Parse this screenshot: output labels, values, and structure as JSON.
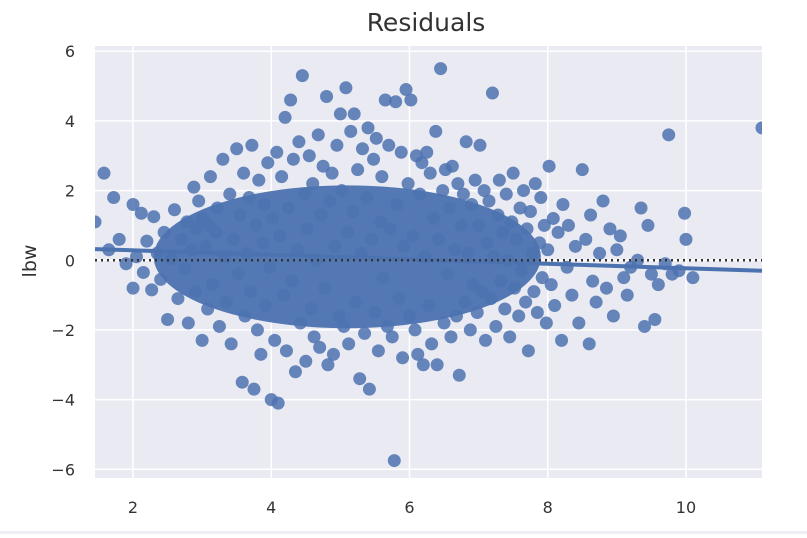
{
  "chart_data": {
    "type": "scatter",
    "title": "Residuals",
    "xlabel": "",
    "ylabel": "lbw",
    "xlim": [
      1.45,
      11.1
    ],
    "ylim": [
      -6.25,
      6.15
    ],
    "xticks": [
      2,
      4,
      6,
      8,
      10
    ],
    "yticks": [
      -6,
      -4,
      -2,
      0,
      2,
      4,
      6
    ],
    "grid": true,
    "colors": {
      "background": "#EAEAF2",
      "grid": "#FFFFFF",
      "points": "#4C72B0",
      "fit_line": "#4C72B0",
      "zero_line": "#333333"
    },
    "zero_line": {
      "y": 0,
      "style": "dotted"
    },
    "fit_line": {
      "x": [
        1.45,
        11.1
      ],
      "y": [
        0.32,
        -0.3
      ]
    },
    "series": [
      {
        "points": [
          [
            1.45,
            1.1
          ],
          [
            1.58,
            2.5
          ],
          [
            1.65,
            0.3
          ],
          [
            1.72,
            1.8
          ],
          [
            1.8,
            0.6
          ],
          [
            1.9,
            -0.1
          ],
          [
            2.0,
            1.6
          ],
          [
            2.0,
            -0.8
          ],
          [
            2.05,
            0.1
          ],
          [
            2.12,
            1.35
          ],
          [
            2.15,
            -0.35
          ],
          [
            2.2,
            0.55
          ],
          [
            2.27,
            -0.85
          ],
          [
            2.3,
            1.25
          ],
          [
            2.35,
            0.2
          ],
          [
            2.4,
            -0.55
          ],
          [
            2.45,
            0.8
          ],
          [
            2.5,
            -1.7
          ],
          [
            2.55,
            0.05
          ],
          [
            2.6,
            1.45
          ],
          [
            2.65,
            -1.1
          ],
          [
            2.7,
            0.6
          ],
          [
            2.75,
            -0.25
          ],
          [
            2.78,
            1.1
          ],
          [
            2.8,
            -1.8
          ],
          [
            2.85,
            0.3
          ],
          [
            2.88,
            2.1
          ],
          [
            2.9,
            -0.9
          ],
          [
            2.92,
            0.9
          ],
          [
            2.95,
            1.7
          ],
          [
            3.0,
            1.2
          ],
          [
            3.0,
            -2.3
          ],
          [
            3.05,
            0.4
          ],
          [
            3.08,
            -1.4
          ],
          [
            3.1,
            1.0
          ],
          [
            3.12,
            2.4
          ],
          [
            3.15,
            -0.7
          ],
          [
            3.2,
            0.8
          ],
          [
            3.22,
            1.5
          ],
          [
            3.25,
            -1.9
          ],
          [
            3.3,
            2.9
          ],
          [
            3.32,
            0.1
          ],
          [
            3.35,
            -1.2
          ],
          [
            3.4,
            1.9
          ],
          [
            3.42,
            -2.4
          ],
          [
            3.45,
            0.6
          ],
          [
            3.5,
            3.2
          ],
          [
            3.52,
            -0.4
          ],
          [
            3.55,
            1.3
          ],
          [
            3.58,
            -3.5
          ],
          [
            3.6,
            2.5
          ],
          [
            3.62,
            -1.6
          ],
          [
            3.65,
            0.2
          ],
          [
            3.68,
            1.8
          ],
          [
            3.7,
            -0.9
          ],
          [
            3.72,
            3.3
          ],
          [
            3.75,
            -3.7
          ],
          [
            3.78,
            1.0
          ],
          [
            3.8,
            -2.0
          ],
          [
            3.82,
            2.3
          ],
          [
            3.85,
            -2.7
          ],
          [
            3.88,
            0.5
          ],
          [
            3.9,
            1.6
          ],
          [
            3.92,
            -1.3
          ],
          [
            3.95,
            2.8
          ],
          [
            3.98,
            -0.2
          ],
          [
            4.0,
            -4.0
          ],
          [
            4.02,
            1.2
          ],
          [
            4.05,
            -2.3
          ],
          [
            4.08,
            3.1
          ],
          [
            4.1,
            -4.1
          ],
          [
            4.12,
            0.7
          ],
          [
            4.15,
            2.4
          ],
          [
            4.18,
            -1.0
          ],
          [
            4.2,
            4.1
          ],
          [
            4.22,
            -2.6
          ],
          [
            4.25,
            1.5
          ],
          [
            4.28,
            4.6
          ],
          [
            4.3,
            -0.6
          ],
          [
            4.32,
            2.9
          ],
          [
            4.35,
            -3.2
          ],
          [
            4.38,
            0.3
          ],
          [
            4.4,
            3.4
          ],
          [
            4.42,
            -1.8
          ],
          [
            4.45,
            5.3
          ],
          [
            4.48,
            1.9
          ],
          [
            4.5,
            -2.9
          ],
          [
            4.52,
            0.9
          ],
          [
            4.55,
            3.0
          ],
          [
            4.58,
            -1.4
          ],
          [
            4.6,
            2.2
          ],
          [
            4.62,
            -2.2
          ],
          [
            4.65,
            0.0
          ],
          [
            4.68,
            3.6
          ],
          [
            4.7,
            -2.5
          ],
          [
            4.72,
            1.3
          ],
          [
            4.75,
            2.7
          ],
          [
            4.78,
            -0.8
          ],
          [
            4.8,
            4.7
          ],
          [
            4.82,
            -3.0
          ],
          [
            4.85,
            1.7
          ],
          [
            4.88,
            2.5
          ],
          [
            4.9,
            -2.7
          ],
          [
            4.92,
            0.4
          ],
          [
            4.95,
            3.3
          ],
          [
            4.98,
            -1.6
          ],
          [
            5.0,
            4.2
          ],
          [
            5.02,
            2.0
          ],
          [
            5.05,
            -1.9
          ],
          [
            5.08,
            4.95
          ],
          [
            5.1,
            0.8
          ],
          [
            5.12,
            -2.4
          ],
          [
            5.15,
            3.7
          ],
          [
            5.18,
            1.4
          ],
          [
            5.2,
            4.2
          ],
          [
            5.22,
            -1.2
          ],
          [
            5.25,
            2.6
          ],
          [
            5.28,
            -3.4
          ],
          [
            5.3,
            0.2
          ],
          [
            5.32,
            3.2
          ],
          [
            5.35,
            -2.1
          ],
          [
            5.38,
            1.8
          ],
          [
            5.4,
            3.8
          ],
          [
            5.42,
            -3.7
          ],
          [
            5.45,
            0.6
          ],
          [
            5.48,
            2.9
          ],
          [
            5.5,
            -1.5
          ],
          [
            5.52,
            3.5
          ],
          [
            5.55,
            -2.6
          ],
          [
            5.58,
            1.1
          ],
          [
            5.6,
            2.4
          ],
          [
            5.62,
            -0.5
          ],
          [
            5.65,
            4.6
          ],
          [
            5.68,
            -1.9
          ],
          [
            5.7,
            3.3
          ],
          [
            5.72,
            0.9
          ],
          [
            5.75,
            -2.2
          ],
          [
            5.78,
            -5.75
          ],
          [
            5.8,
            4.55
          ],
          [
            5.82,
            1.6
          ],
          [
            5.85,
            -1.1
          ],
          [
            5.88,
            3.1
          ],
          [
            5.9,
            -2.8
          ],
          [
            5.92,
            0.4
          ],
          [
            5.95,
            4.9
          ],
          [
            5.98,
            2.2
          ],
          [
            6.0,
            -1.6
          ],
          [
            6.02,
            4.6
          ],
          [
            6.05,
            0.7
          ],
          [
            6.08,
            -2.0
          ],
          [
            6.1,
            3.0
          ],
          [
            6.12,
            -2.7
          ],
          [
            6.15,
            1.9
          ],
          [
            6.18,
            2.8
          ],
          [
            6.2,
            -3.0
          ],
          [
            6.22,
            0.1
          ],
          [
            6.25,
            3.1
          ],
          [
            6.28,
            -1.3
          ],
          [
            6.3,
            2.5
          ],
          [
            6.32,
            -2.4
          ],
          [
            6.35,
            1.2
          ],
          [
            6.38,
            3.7
          ],
          [
            6.4,
            -3.0
          ],
          [
            6.42,
            0.6
          ],
          [
            6.45,
            5.5
          ],
          [
            6.48,
            2.0
          ],
          [
            6.5,
            -1.8
          ],
          [
            6.52,
            2.6
          ],
          [
            6.55,
            -0.4
          ],
          [
            6.58,
            1.5
          ],
          [
            6.6,
            -2.2
          ],
          [
            6.62,
            2.7
          ],
          [
            6.65,
            0.3
          ],
          [
            6.68,
            -1.6
          ],
          [
            6.7,
            2.2
          ],
          [
            6.72,
            -3.3
          ],
          [
            6.75,
            1.0
          ],
          [
            6.78,
            1.9
          ],
          [
            6.8,
            -1.2
          ],
          [
            6.82,
            3.4
          ],
          [
            6.85,
            0.2
          ],
          [
            6.88,
            -2.0
          ],
          [
            6.9,
            1.6
          ],
          [
            6.92,
            -0.7
          ],
          [
            6.95,
            2.3
          ],
          [
            6.98,
            -1.5
          ],
          [
            7.0,
            1.0
          ],
          [
            7.02,
            3.3
          ],
          [
            7.05,
            -0.9
          ],
          [
            7.08,
            2.0
          ],
          [
            7.1,
            -2.3
          ],
          [
            7.12,
            0.5
          ],
          [
            7.15,
            1.7
          ],
          [
            7.18,
            -1.1
          ],
          [
            7.2,
            4.8
          ],
          [
            7.22,
            0.1
          ],
          [
            7.25,
            -1.9
          ],
          [
            7.28,
            1.3
          ],
          [
            7.3,
            2.3
          ],
          [
            7.32,
            -0.6
          ],
          [
            7.35,
            0.8
          ],
          [
            7.38,
            -1.4
          ],
          [
            7.4,
            1.9
          ],
          [
            7.42,
            0.0
          ],
          [
            7.45,
            -2.2
          ],
          [
            7.48,
            1.1
          ],
          [
            7.5,
            2.5
          ],
          [
            7.52,
            -0.8
          ],
          [
            7.55,
            0.6
          ],
          [
            7.58,
            -1.6
          ],
          [
            7.6,
            1.5
          ],
          [
            7.62,
            -0.3
          ],
          [
            7.65,
            2.0
          ],
          [
            7.68,
            -1.2
          ],
          [
            7.7,
            0.9
          ],
          [
            7.72,
            -2.6
          ],
          [
            7.75,
            1.4
          ],
          [
            7.78,
            0.2
          ],
          [
            7.8,
            -0.9
          ],
          [
            7.82,
            2.2
          ],
          [
            7.85,
            -1.5
          ],
          [
            7.88,
            0.5
          ],
          [
            7.9,
            1.8
          ],
          [
            7.92,
            -0.5
          ],
          [
            7.95,
            1.0
          ],
          [
            7.98,
            -1.8
          ],
          [
            8.0,
            0.3
          ],
          [
            8.02,
            2.7
          ],
          [
            8.05,
            -0.7
          ],
          [
            8.08,
            1.2
          ],
          [
            8.1,
            -1.3
          ],
          [
            8.15,
            0.8
          ],
          [
            8.2,
            -2.3
          ],
          [
            8.22,
            1.6
          ],
          [
            8.28,
            -0.2
          ],
          [
            8.3,
            1.0
          ],
          [
            8.35,
            -1.0
          ],
          [
            8.4,
            0.4
          ],
          [
            8.45,
            -1.8
          ],
          [
            8.5,
            2.6
          ],
          [
            8.55,
            0.6
          ],
          [
            8.6,
            -2.4
          ],
          [
            8.62,
            1.3
          ],
          [
            8.65,
            -0.6
          ],
          [
            8.7,
            -1.2
          ],
          [
            8.75,
            0.2
          ],
          [
            8.8,
            1.7
          ],
          [
            8.85,
            -0.8
          ],
          [
            8.9,
            0.9
          ],
          [
            8.95,
            -1.6
          ],
          [
            9.0,
            0.3
          ],
          [
            9.05,
            0.7
          ],
          [
            9.1,
            -0.5
          ],
          [
            9.15,
            -1.0
          ],
          [
            9.2,
            -0.2
          ],
          [
            9.3,
            0.0
          ],
          [
            9.35,
            1.5
          ],
          [
            9.4,
            -1.9
          ],
          [
            9.45,
            1.0
          ],
          [
            9.5,
            -0.4
          ],
          [
            9.55,
            -1.7
          ],
          [
            9.6,
            -0.7
          ],
          [
            9.7,
            -0.1
          ],
          [
            9.75,
            3.6
          ],
          [
            9.8,
            -0.4
          ],
          [
            9.9,
            -0.3
          ],
          [
            9.98,
            1.35
          ],
          [
            10.0,
            0.6
          ],
          [
            10.1,
            -0.5
          ],
          [
            11.1,
            3.8
          ]
        ]
      }
    ]
  }
}
